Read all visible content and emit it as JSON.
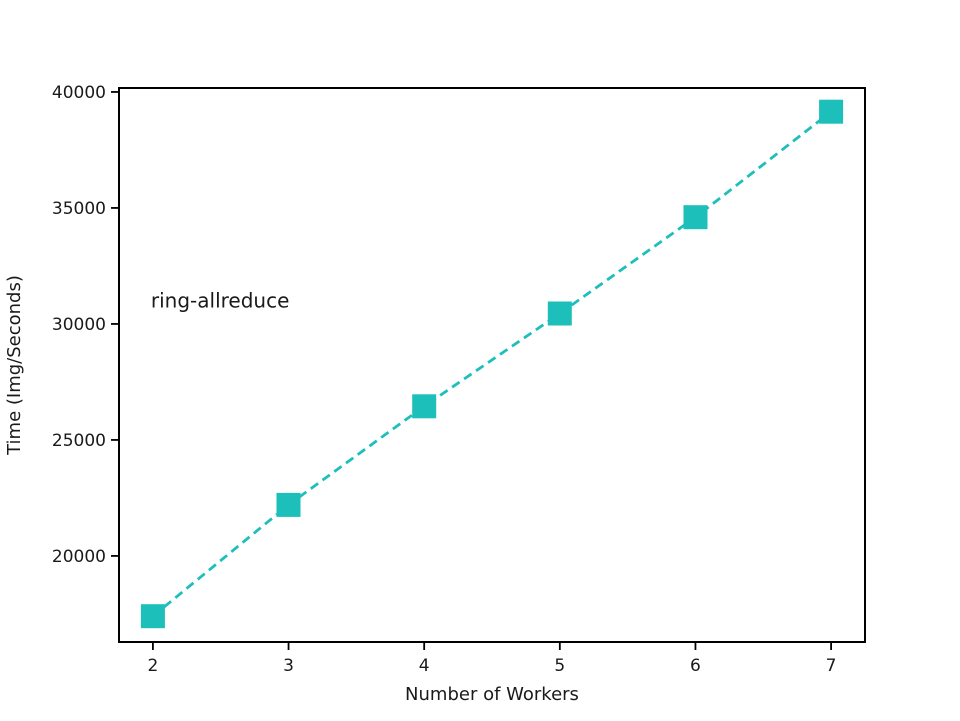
{
  "figure": {
    "background": "#ffffff"
  },
  "chart_data": {
    "type": "line",
    "x": [
      2,
      3,
      4,
      5,
      6,
      7
    ],
    "series": [
      {
        "name": "ring-allreduce",
        "values": [
          17400,
          22200,
          26450,
          30450,
          34600,
          39150
        ],
        "color": "#1cbfba",
        "linestyle": "dashed",
        "marker": "square"
      }
    ],
    "annotation": {
      "text": "ring-allreduce",
      "x": 1.985,
      "y": 31000
    },
    "title": "",
    "xlabel": "Number of Workers",
    "ylabel": "Time (Img/Seconds)",
    "xlim": [
      1.75,
      7.25
    ],
    "ylim": [
      16290,
      40170
    ],
    "xticks": [
      2,
      3,
      4,
      5,
      6,
      7
    ],
    "xtick_labels": [
      "2",
      "3",
      "4",
      "5",
      "6",
      "7"
    ],
    "yticks": [
      20000,
      25000,
      30000,
      35000,
      40000
    ],
    "ytick_labels": [
      "20000",
      "25000",
      "30000",
      "35000",
      "40000"
    ],
    "grid": false,
    "legend_position": "none",
    "axis_color": "#000000",
    "text_color": "#1a1a1a"
  }
}
